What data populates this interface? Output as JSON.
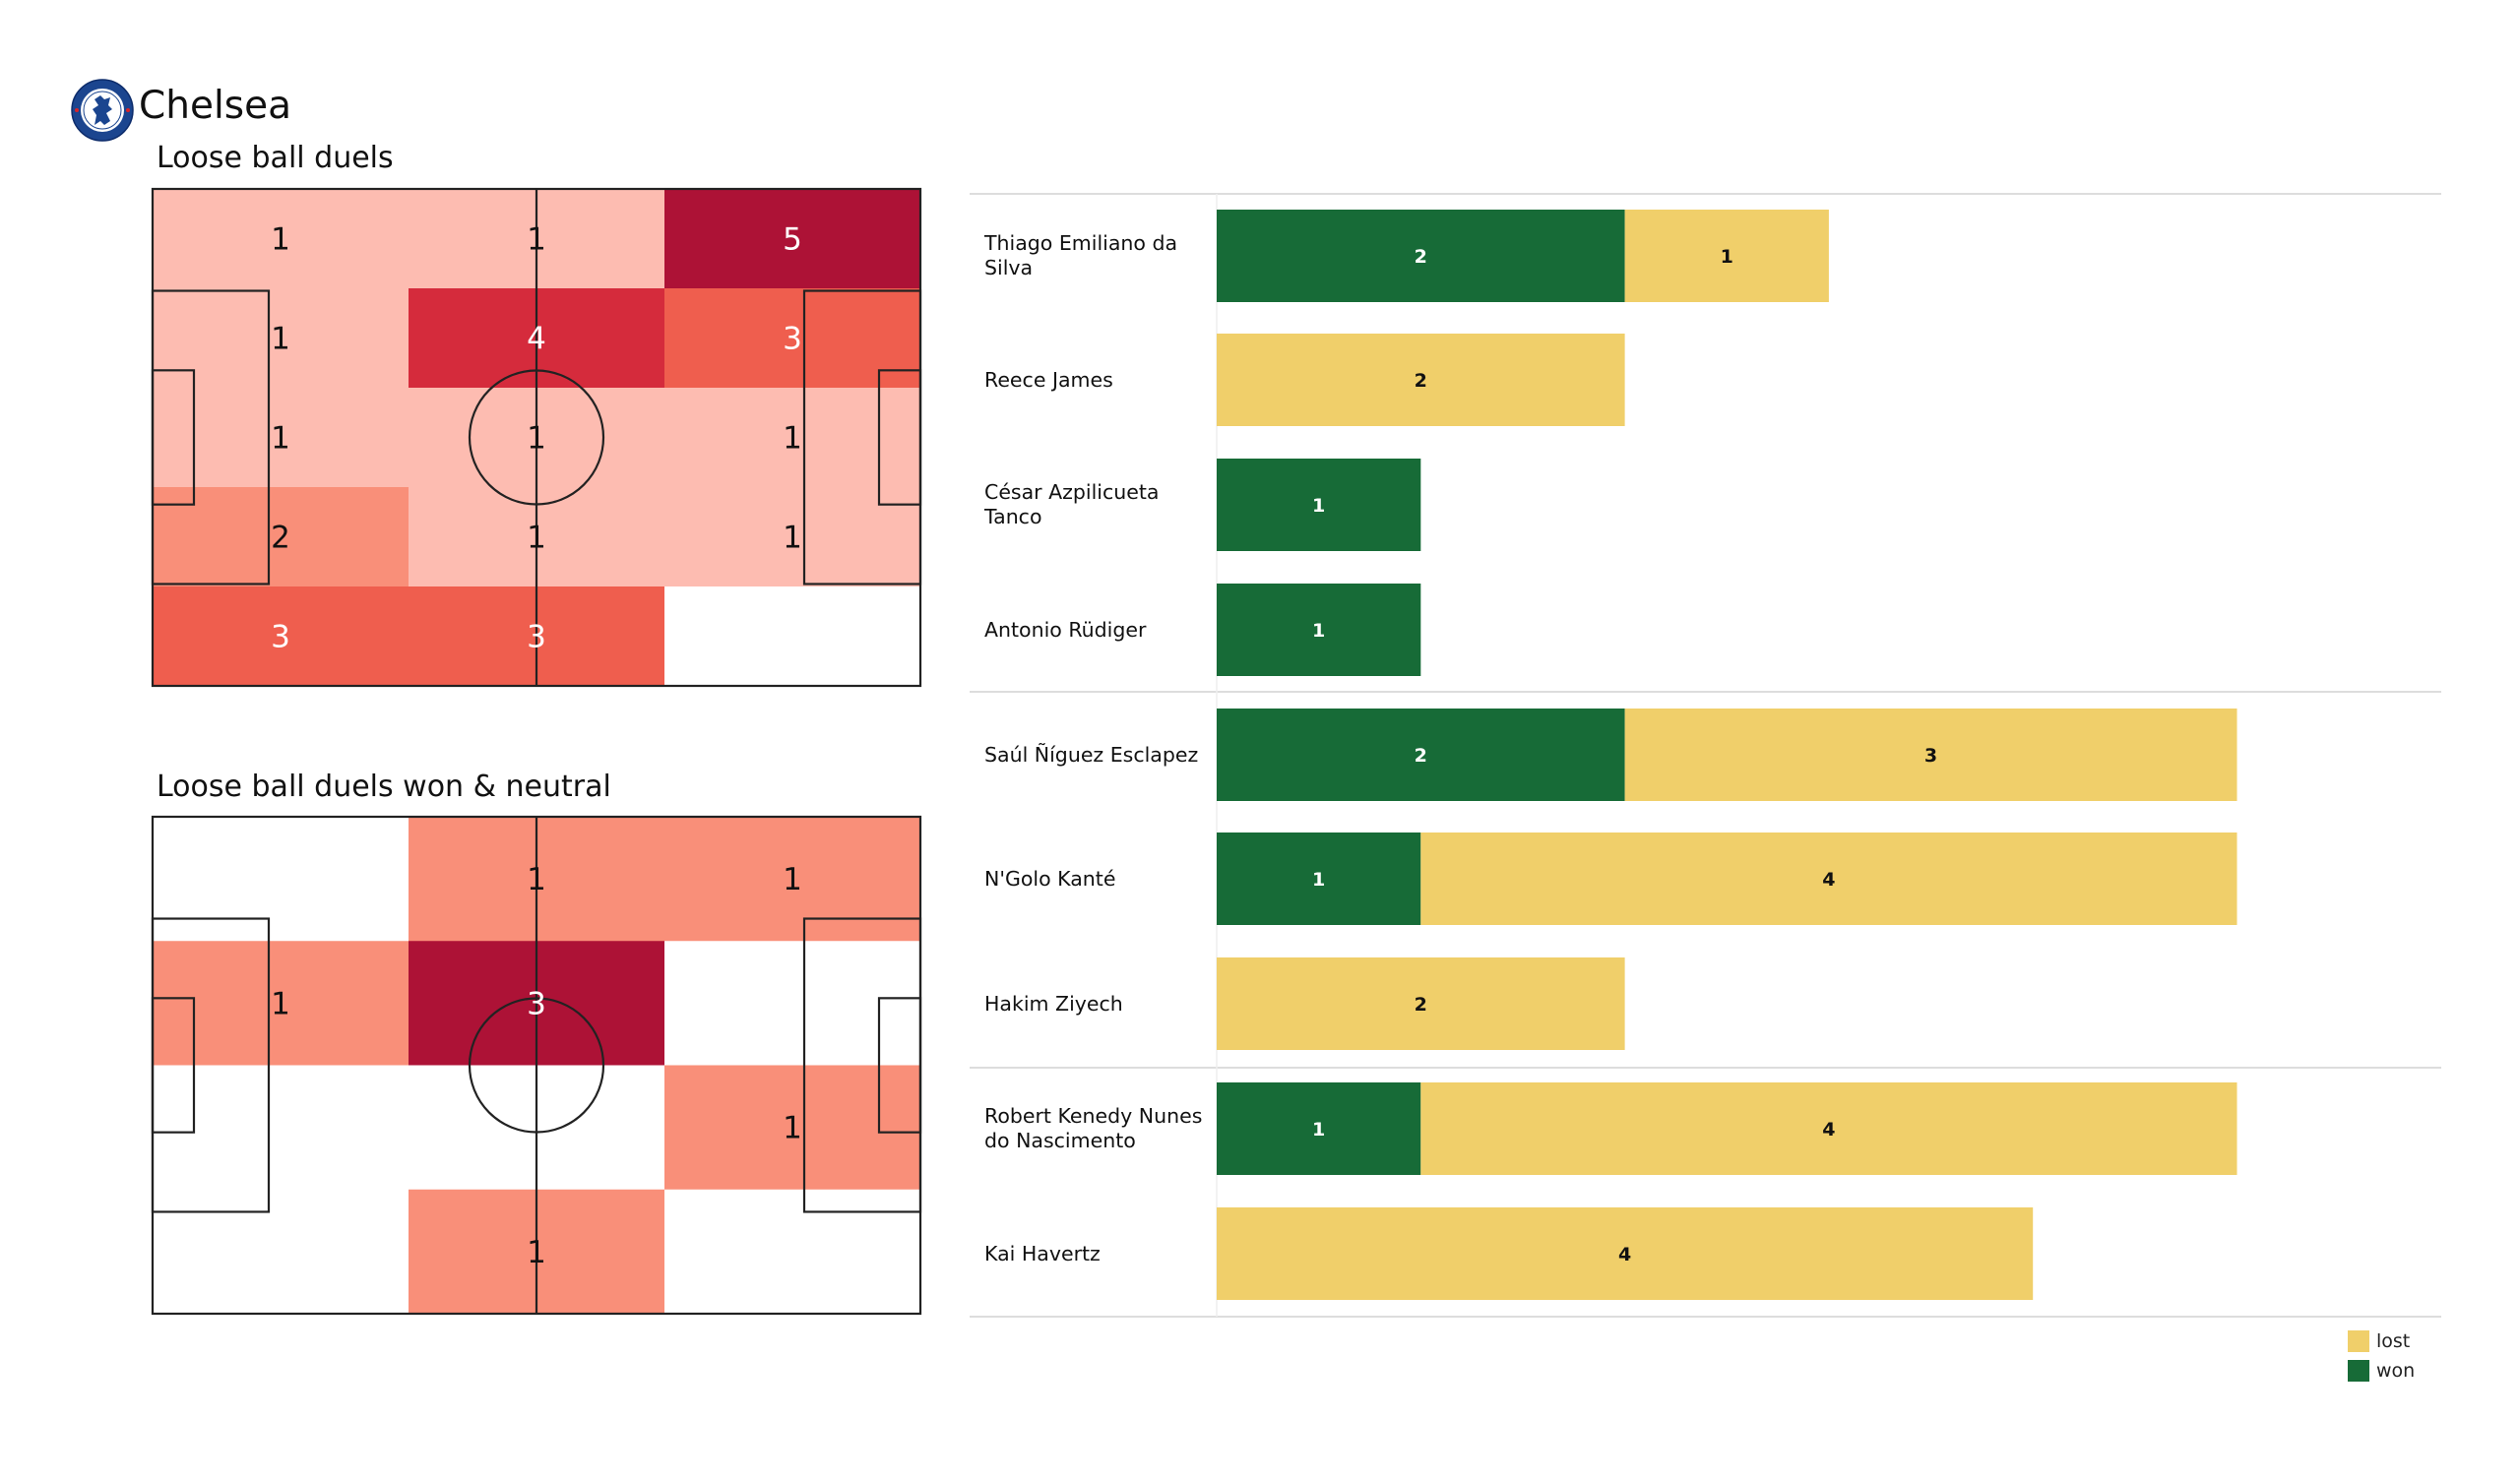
{
  "header": {
    "team_name": "Chelsea",
    "logo_icon": "chelsea-crest-icon"
  },
  "colors": {
    "won": "#176b37",
    "lost": "#f0cf6a",
    "heat_scale": [
      "#ffffff",
      "#fdbcb1",
      "#f98f79",
      "#ef5e4e",
      "#d52b3c",
      "#ad1236"
    ],
    "pitch_line": "#222222",
    "separator": "#dddddd"
  },
  "chart_data": [
    {
      "type": "heatmap",
      "title": "Loose ball duels",
      "rows": 5,
      "cols": 3,
      "values": [
        [
          1,
          1,
          5
        ],
        [
          1,
          4,
          3
        ],
        [
          1,
          1,
          1
        ],
        [
          2,
          1,
          1
        ],
        [
          3,
          3,
          null
        ]
      ]
    },
    {
      "type": "heatmap",
      "title": "Loose ball duels won & neutral",
      "rows": 4,
      "cols": 3,
      "values": [
        [
          null,
          1,
          1
        ],
        [
          1,
          3,
          null
        ],
        [
          null,
          null,
          1
        ],
        [
          null,
          1,
          null
        ]
      ]
    },
    {
      "type": "bar",
      "orientation": "horizontal",
      "stacked": true,
      "categories": [
        "Thiago Emiliano da Silva",
        "Reece James",
        "César Azpilicueta Tanco",
        "Antonio Rüdiger",
        "Saúl Ñíguez Esclapez",
        "N'Golo Kanté",
        "Hakim Ziyech",
        "Robert Kenedy Nunes do Nascimento",
        "Kai Havertz"
      ],
      "category_lines": [
        [
          "Thiago Emiliano da",
          "Silva"
        ],
        [
          "Reece James"
        ],
        [
          "César Azpilicueta",
          "Tanco"
        ],
        [
          "Antonio Rüdiger"
        ],
        [
          "Saúl Ñíguez Esclapez"
        ],
        [
          "N'Golo Kanté"
        ],
        [
          "Hakim Ziyech"
        ],
        [
          "Robert Kenedy Nunes",
          "do Nascimento"
        ],
        [
          "Kai Havertz"
        ]
      ],
      "groups": [
        [
          0,
          1,
          2,
          3
        ],
        [
          4,
          5,
          6
        ],
        [
          7,
          8
        ]
      ],
      "series": [
        {
          "name": "won",
          "values": [
            2,
            0,
            1,
            1,
            2,
            1,
            0,
            1,
            0
          ]
        },
        {
          "name": "lost",
          "values": [
            1,
            2,
            0,
            0,
            3,
            4,
            2,
            4,
            4
          ]
        }
      ],
      "xlim": [
        0,
        6
      ],
      "legend": {
        "position": "bottom-right",
        "entries": [
          "lost",
          "won"
        ]
      }
    }
  ]
}
